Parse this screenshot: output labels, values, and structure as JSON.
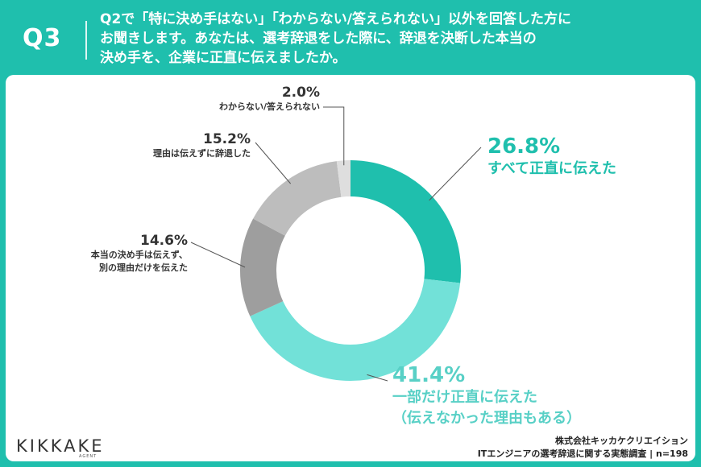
{
  "header": {
    "q_label": "Q3",
    "question_lines": [
      "Q2で「特に決め手はない」「わからない/答えられない」以外を回答した方に",
      "お聞きします。あなたは、選考辞退をした際に、辞退を決断した本当の",
      "決め手を、企業に正直に伝えましたか。"
    ]
  },
  "chart_data": {
    "type": "pie",
    "donut": true,
    "start_angle_deg": 0,
    "direction": "clockwise",
    "slices": [
      {
        "label_lines": [
          "すべて正直に伝えた"
        ],
        "value": 26.8,
        "value_label": "26.8%",
        "color": "#1fbfad"
      },
      {
        "label_lines": [
          "一部だけ正直に伝えた",
          "（伝えなかった理由もある）"
        ],
        "value": 41.4,
        "value_label": "41.4%",
        "color": "#72e1d8"
      },
      {
        "label_lines": [
          "本当の決め手は伝えず、",
          "別の理由だけを伝えた"
        ],
        "value": 14.6,
        "value_label": "14.6%",
        "color": "#9e9e9e"
      },
      {
        "label_lines": [
          "理由は伝えずに辞退した"
        ],
        "value": 15.2,
        "value_label": "15.2%",
        "color": "#bdbdbd"
      },
      {
        "label_lines": [
          "わからない/答えられない"
        ],
        "value": 2.0,
        "value_label": "2.0%",
        "color": "#dedede"
      }
    ]
  },
  "footer": {
    "logo_text": "KIKKAKE",
    "logo_sub": "AGENT",
    "source_lines": [
      "株式会社キッカケクリエイション",
      "ITエンジニアの選考辞退に関する実態調査 | n=198"
    ]
  }
}
